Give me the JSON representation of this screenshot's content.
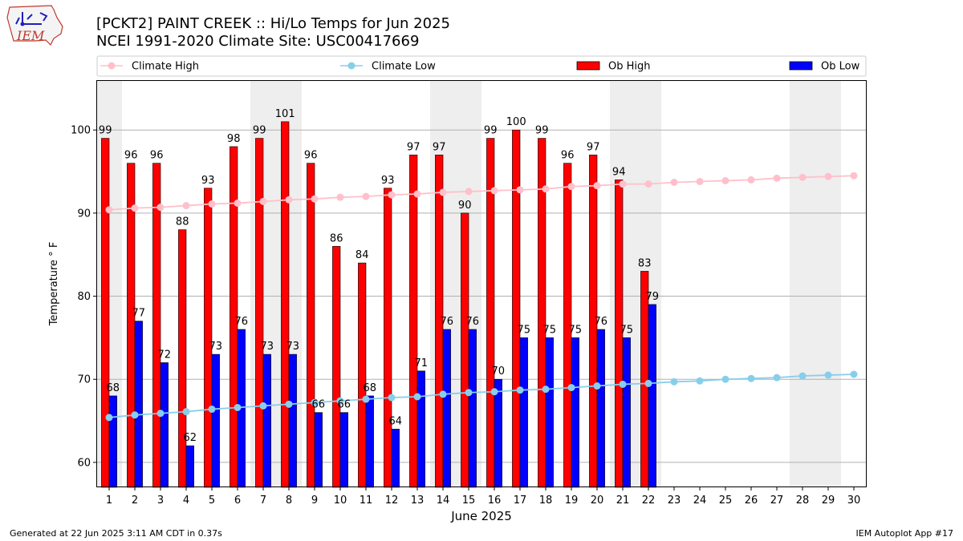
{
  "logo": {
    "text": "IEM"
  },
  "footer": {
    "generated": "Generated at 22 Jun 2025 3:11 AM CDT in 0.37s",
    "app": "IEM Autoplot App #17"
  },
  "chart_data": {
    "type": "bar",
    "title": "[PCKT2] PAINT CREEK :: Hi/Lo Temps for Jun 2025",
    "subtitle": "NCEI 1991-2020 Climate Site: USC00417669",
    "xlabel": "June 2025",
    "ylabel": "Temperature ° F",
    "xlim": [
      0.5,
      30.5
    ],
    "ylim": [
      57,
      106
    ],
    "yticks": [
      60,
      70,
      80,
      90,
      100
    ],
    "days": [
      1,
      2,
      3,
      4,
      5,
      6,
      7,
      8,
      9,
      10,
      11,
      12,
      13,
      14,
      15,
      16,
      17,
      18,
      19,
      20,
      21,
      22,
      23,
      24,
      25,
      26,
      27,
      28,
      29,
      30
    ],
    "weekend_bands": [
      [
        1,
        1
      ],
      [
        7,
        8
      ],
      [
        14,
        15
      ],
      [
        21,
        22
      ],
      [
        28,
        29
      ]
    ],
    "legend": {
      "placement": "top, above plot",
      "entries": [
        "Climate High",
        "Climate Low",
        "Ob High",
        "Ob Low"
      ]
    },
    "grid": "horizontal",
    "series": [
      {
        "name": "Ob High",
        "kind": "bar",
        "color": "#ff0000",
        "values": [
          99,
          96,
          96,
          88,
          93,
          98,
          99,
          101,
          96,
          86,
          84,
          93,
          97,
          97,
          90,
          99,
          100,
          99,
          96,
          97,
          94,
          83
        ]
      },
      {
        "name": "Ob Low",
        "kind": "bar",
        "color": "#0000ff",
        "values": [
          68,
          77,
          72,
          62,
          73,
          76,
          73,
          73,
          66,
          66,
          68,
          64,
          71,
          76,
          76,
          70,
          75,
          75,
          75,
          76,
          75,
          79
        ]
      },
      {
        "name": "Climate High",
        "kind": "line",
        "color": "#ffc0cb",
        "values": [
          90.4,
          90.6,
          90.7,
          90.9,
          91.1,
          91.2,
          91.4,
          91.6,
          91.7,
          91.9,
          92.0,
          92.2,
          92.3,
          92.5,
          92.6,
          92.7,
          92.8,
          92.9,
          93.2,
          93.3,
          93.5,
          93.5,
          93.7,
          93.8,
          93.9,
          94.0,
          94.2,
          94.3,
          94.4,
          94.5
        ]
      },
      {
        "name": "Climate Low",
        "kind": "line",
        "color": "#87ceeb",
        "values": [
          65.4,
          65.7,
          65.9,
          66.1,
          66.4,
          66.6,
          66.8,
          67.0,
          67.2,
          67.4,
          67.6,
          67.8,
          67.9,
          68.2,
          68.4,
          68.5,
          68.7,
          68.8,
          69.0,
          69.2,
          69.4,
          69.5,
          69.7,
          69.8,
          70.0,
          70.1,
          70.2,
          70.4,
          70.5,
          70.6
        ]
      }
    ]
  }
}
